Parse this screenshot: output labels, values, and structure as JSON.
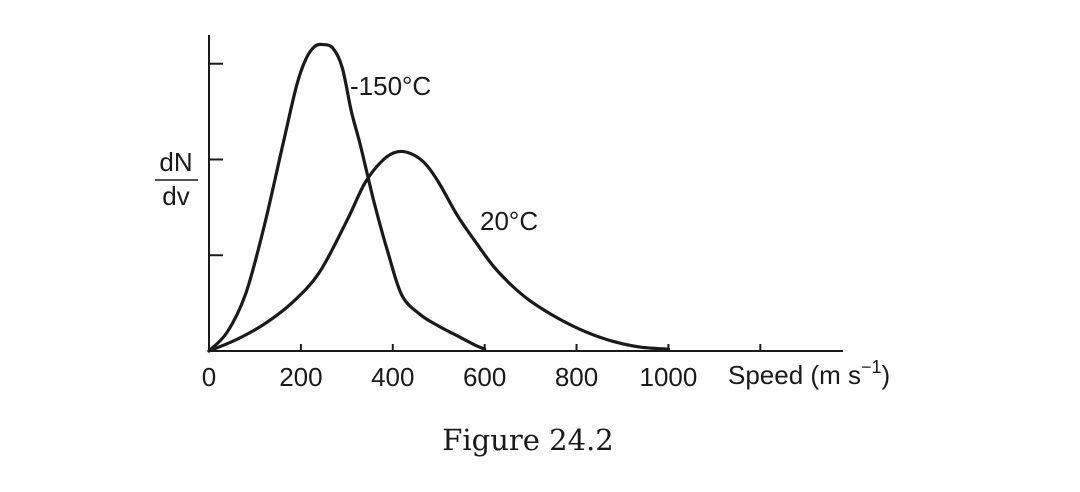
{
  "chart_data": {
    "type": "line",
    "xlabel": "Speed (m s",
    "xlabel_superscript": "−1",
    "xlabel_close": ")",
    "ylabel_numerator": "dN",
    "ylabel_denominator": "dv",
    "xlim": [
      0,
      1380
    ],
    "ylim": [
      0,
      1.65
    ],
    "x_ticks": [
      0,
      200,
      400,
      600,
      800,
      1000,
      1200
    ],
    "x_tick_labels": [
      "0",
      "200",
      "400",
      "600",
      "800",
      "1000"
    ],
    "y_ticks": [
      0.5,
      1.0,
      1.5
    ],
    "grid": false,
    "series": [
      {
        "name": "-150°C",
        "x": [
          0,
          40,
          80,
          120,
          160,
          190,
          210,
          230,
          250,
          270,
          290,
          310,
          330,
          360,
          390,
          420,
          460,
          500,
          540,
          580,
          600
        ],
        "y": [
          0,
          0.1,
          0.3,
          0.65,
          1.07,
          1.38,
          1.52,
          1.59,
          1.6,
          1.58,
          1.48,
          1.25,
          1.07,
          0.77,
          0.51,
          0.29,
          0.19,
          0.13,
          0.08,
          0.03,
          0.01
        ]
      },
      {
        "name": "20°C",
        "x": [
          0,
          60,
          120,
          180,
          240,
          300,
          340,
          380,
          410,
          440,
          470,
          500,
          540,
          580,
          620,
          660,
          700,
          760,
          820,
          880,
          940,
          1000
        ],
        "y": [
          0,
          0.06,
          0.14,
          0.25,
          0.41,
          0.68,
          0.88,
          1.0,
          1.04,
          1.03,
          0.98,
          0.88,
          0.71,
          0.57,
          0.44,
          0.34,
          0.26,
          0.17,
          0.1,
          0.05,
          0.02,
          0.01
        ]
      }
    ]
  },
  "caption": "Figure 24.2"
}
